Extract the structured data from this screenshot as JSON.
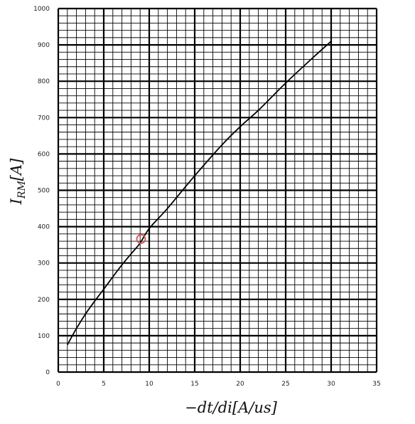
{
  "chart_data": {
    "type": "line",
    "title": "",
    "xlabel": "−dt/di[A/us]",
    "ylabel": "I_RM[A]",
    "ylabel_parts": {
      "main": "I",
      "sub": "RM",
      "rest": "[A]"
    },
    "xlim": [
      0,
      35
    ],
    "ylim": [
      0,
      1000
    ],
    "x_major_ticks": [
      0,
      5,
      10,
      15,
      20,
      25,
      30,
      35
    ],
    "y_major_ticks": [
      0,
      100,
      200,
      300,
      400,
      500,
      600,
      700,
      800,
      900,
      1000
    ],
    "x_minor_step": 1,
    "y_minor_step": 20,
    "grid": true,
    "series": [
      {
        "color": "#000000",
        "x": [
          1,
          2,
          3,
          4,
          5,
          6,
          7,
          8,
          9,
          10,
          12,
          15,
          18,
          20,
          22,
          25,
          28,
          30
        ],
        "y": [
          75,
          120,
          160,
          195,
          228,
          262,
          295,
          325,
          355,
          395,
          450,
          540,
          625,
          675,
          720,
          795,
          865,
          910
        ]
      }
    ],
    "highlight_point": {
      "x": 9.1,
      "y": 366,
      "color": "#d9534f"
    }
  }
}
